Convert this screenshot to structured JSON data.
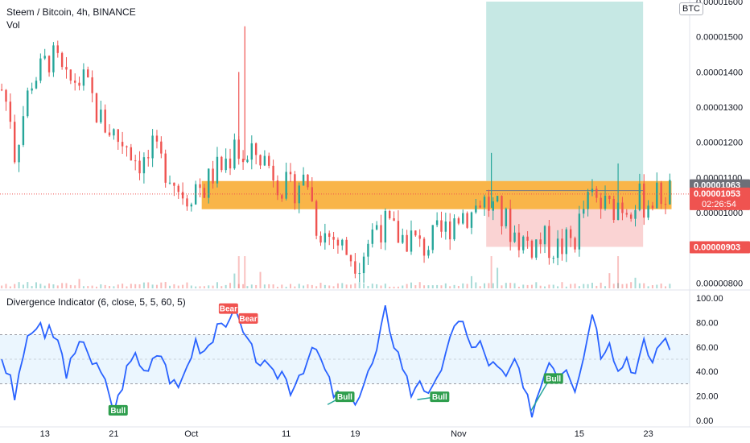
{
  "header": {
    "symbol_line": "Steem / Bitcoin, 4h, BINANCE",
    "volume_label": "Vol",
    "indicator_line": "Divergence Indicator (6, close, 5, 5, 60, 5)",
    "currency_badge": "BTC"
  },
  "colors": {
    "up": "#26a69a",
    "down": "#ef5350",
    "rsi": "#2962ff",
    "zone": "#f7a21b",
    "target": "#80cbc4",
    "stop": "#f8bbbb"
  },
  "chart_data": [
    {
      "type": "candlestick",
      "title": "Steem / Bitcoin, 4h, BINANCE",
      "y_ticks": [
        "0.00001600",
        "0.00001500",
        "0.00001400",
        "0.00001300",
        "0.00001200",
        "0.00001100",
        "0.00001000",
        "0.00000900",
        "0.00000800"
      ],
      "ylim": [
        7.85e-06,
        1.6e-05
      ],
      "x_ticks": [
        {
          "label": "13",
          "day": 13
        },
        {
          "label": "21",
          "day": 21
        },
        {
          "label": "Oct",
          "day": 30
        },
        {
          "label": "11",
          "day": 41
        },
        {
          "label": "19",
          "day": 49
        },
        {
          "label": "Nov",
          "day": 61
        },
        {
          "label": "15",
          "day": 75
        },
        {
          "label": "23",
          "day": 83
        }
      ],
      "xlim_day": [
        7.8,
        87.8
      ],
      "price_labels": [
        {
          "value": "0.00001063",
          "price": 1.063e-05,
          "bg": "#6d6f78"
        },
        {
          "value": "0.00001053",
          "price": 1.053e-05,
          "bg": "#ef5350",
          "sub": "02:26:54"
        },
        {
          "value": "0.00000903",
          "price": 9.03e-06,
          "bg": "#ef5350"
        }
      ],
      "key_points": [
        [
          8,
          1.35e-05
        ],
        [
          9,
          1.28e-05
        ],
        [
          9.5,
          1.17e-05
        ],
        [
          10.5,
          1.28e-05
        ],
        [
          11.5,
          1.38e-05
        ],
        [
          12.5,
          1.4e-05
        ],
        [
          13.5,
          1.44e-05
        ],
        [
          14.5,
          1.42e-05
        ],
        [
          15.5,
          1.36e-05
        ],
        [
          16.5,
          1.38e-05
        ],
        [
          17.5,
          1.37e-05
        ],
        [
          18.5,
          1.32e-05
        ],
        [
          19.5,
          1.26e-05
        ],
        [
          20.5,
          1.24e-05
        ],
        [
          21.5,
          1.21e-05
        ],
        [
          22.5,
          1.2e-05
        ],
        [
          23.5,
          1.16e-05
        ],
        [
          24.5,
          1.14e-05
        ],
        [
          25.5,
          1.17e-05
        ],
        [
          26.5,
          1.14e-05
        ],
        [
          27.5,
          1.12e-05
        ],
        [
          28.5,
          1.07e-05
        ],
        [
          29.5,
          1.05e-05
        ],
        [
          30.5,
          1.08e-05
        ],
        [
          31.5,
          1.07e-05
        ],
        [
          32.5,
          1.11e-05
        ],
        [
          33.5,
          1.13e-05
        ],
        [
          34.5,
          1.16e-05
        ],
        [
          35,
          1.23e-05
        ],
        [
          35.5,
          1.17e-05
        ],
        [
          36.5,
          1.14e-05
        ],
        [
          37.5,
          1.17e-05
        ],
        [
          38.5,
          1.15e-05
        ],
        [
          39.5,
          1.12e-05
        ],
        [
          40.5,
          1.08e-05
        ],
        [
          41.5,
          1.06e-05
        ],
        [
          42.5,
          1.09e-05
        ],
        [
          43.5,
          1.09e-05
        ],
        [
          44.5,
          9.7e-06
        ],
        [
          45.5,
          9.4e-06
        ],
        [
          46.5,
          9.3e-06
        ],
        [
          47.5,
          9e-06
        ],
        [
          48.5,
          8.8e-06
        ],
        [
          49.5,
          8.7e-06
        ],
        [
          50.5,
          9.2e-06
        ],
        [
          51.5,
          9.7e-06
        ],
        [
          52.5,
          9.6e-06
        ],
        [
          53.5,
          9.4e-06
        ],
        [
          54.5,
          9.3e-06
        ],
        [
          55.5,
          9.3e-06
        ],
        [
          56.5,
          9e-06
        ],
        [
          57.5,
          9.1e-06
        ],
        [
          58.5,
          9.3e-06
        ],
        [
          59.5,
          9.5e-06
        ],
        [
          60.5,
          9.9e-06
        ],
        [
          61.5,
          1e-05
        ],
        [
          62.5,
          1e-05
        ],
        [
          63.5,
          1.04e-05
        ],
        [
          64.5,
          1.02e-05
        ],
        [
          65.5,
          1e-05
        ],
        [
          66.5,
          9.7e-06
        ],
        [
          67.5,
          9.4e-06
        ],
        [
          68.5,
          9.2e-06
        ],
        [
          69.5,
          9.1e-06
        ],
        [
          70.5,
          9.2e-06
        ],
        [
          71.5,
          9.1e-06
        ],
        [
          72.5,
          9e-06
        ],
        [
          73.5,
          9.1e-06
        ],
        [
          74.5,
          9.3e-06
        ],
        [
          75.5,
          1.01e-05
        ],
        [
          76.5,
          1.04e-05
        ],
        [
          77.5,
          1.02e-05
        ],
        [
          78.5,
          1.01e-05
        ],
        [
          79.5,
          1.03e-05
        ],
        [
          80.5,
          1.02e-05
        ],
        [
          81.5,
          1.04e-05
        ],
        [
          82.5,
          1.03e-05
        ],
        [
          83.5,
          1.04e-05
        ],
        [
          84.5,
          1.05e-05
        ],
        [
          85.5,
          1.06e-05
        ]
      ],
      "spikes": [
        {
          "day": 36.2,
          "high": 1.53e-05
        },
        {
          "day": 35.5,
          "high": 1.4e-05
        },
        {
          "day": 64.8,
          "high": 1.17e-05
        },
        {
          "day": 79.5,
          "high": 1.14e-05
        }
      ],
      "resistance_zone": {
        "day_start": 31.2,
        "day_end": 85.7,
        "top": 1.09e-05,
        "bottom": 1.01e-05
      },
      "long_target": {
        "day_start": 64.2,
        "day_end": 82.4,
        "top": 1.6e-05,
        "bottom": 1.09e-05
      },
      "stop_zone": {
        "day_start": 64.2,
        "day_end": 82.4,
        "top": 1.01e-05,
        "bottom": 9.03e-06
      },
      "entry_level": 1.063e-05,
      "last_price": 1.053e-05
    },
    {
      "type": "line",
      "title": "Divergence Indicator (6, close, 5, 5, 60, 5)",
      "y_ticks": [
        "100.00",
        "80.00",
        "60.00",
        "40.00",
        "20.00",
        "0.00"
      ],
      "ylim": [
        0,
        100
      ],
      "band": [
        30,
        70
      ],
      "midline": 50,
      "key_points": [
        [
          8,
          52
        ],
        [
          9,
          32
        ],
        [
          9.5,
          18
        ],
        [
          10.5,
          55
        ],
        [
          11.5,
          72
        ],
        [
          12.5,
          80
        ],
        [
          13,
          62
        ],
        [
          13.5,
          75
        ],
        [
          14.5,
          64
        ],
        [
          15.5,
          40
        ],
        [
          16.5,
          52
        ],
        [
          17.5,
          68
        ],
        [
          18.5,
          48
        ],
        [
          19.5,
          38
        ],
        [
          20.5,
          22
        ],
        [
          21,
          8
        ],
        [
          21.5,
          18
        ],
        [
          22.5,
          42
        ],
        [
          23.5,
          55
        ],
        [
          24.5,
          40
        ],
        [
          25.5,
          52
        ],
        [
          26.5,
          58
        ],
        [
          27.5,
          34
        ],
        [
          28.5,
          22
        ],
        [
          29.5,
          48
        ],
        [
          30.5,
          62
        ],
        [
          31.5,
          55
        ],
        [
          32.5,
          66
        ],
        [
          33.5,
          85
        ],
        [
          34.5,
          78
        ],
        [
          35,
          90
        ],
        [
          35.5,
          80
        ],
        [
          36.5,
          62
        ],
        [
          37.5,
          52
        ],
        [
          38.5,
          44
        ],
        [
          39.5,
          36
        ],
        [
          40.5,
          40
        ],
        [
          41.5,
          26
        ],
        [
          42.5,
          38
        ],
        [
          43.5,
          50
        ],
        [
          44.5,
          58
        ],
        [
          45.5,
          40
        ],
        [
          46.5,
          22
        ],
        [
          47.5,
          18
        ],
        [
          48.5,
          14
        ],
        [
          49.5,
          22
        ],
        [
          50.5,
          38
        ],
        [
          51.5,
          55
        ],
        [
          52.5,
          90
        ],
        [
          53.5,
          64
        ],
        [
          54.5,
          45
        ],
        [
          55.5,
          22
        ],
        [
          56.5,
          36
        ],
        [
          57.5,
          18
        ],
        [
          58.5,
          30
        ],
        [
          59.5,
          58
        ],
        [
          60.5,
          72
        ],
        [
          61.5,
          85
        ],
        [
          62.5,
          58
        ],
        [
          63.5,
          62
        ],
        [
          64.5,
          48
        ],
        [
          65.5,
          42
        ],
        [
          66.5,
          34
        ],
        [
          67.5,
          50
        ],
        [
          68.5,
          24
        ],
        [
          69.5,
          8
        ],
        [
          70.5,
          28
        ],
        [
          71.5,
          52
        ],
        [
          72.5,
          38
        ],
        [
          73.5,
          46
        ],
        [
          74.5,
          28
        ],
        [
          75.5,
          52
        ],
        [
          76.5,
          92
        ],
        [
          77.5,
          55
        ],
        [
          78.5,
          68
        ],
        [
          79.5,
          40
        ],
        [
          80.5,
          52
        ],
        [
          81.5,
          38
        ],
        [
          82.5,
          62
        ],
        [
          83.5,
          48
        ],
        [
          84.5,
          68
        ],
        [
          85.5,
          58
        ]
      ],
      "labels": [
        {
          "text": "Bear",
          "day": 34.3,
          "y": 91,
          "kind": "bear"
        },
        {
          "text": "Bear",
          "day": 36.6,
          "y": 83,
          "kind": "bear"
        },
        {
          "text": "Bull",
          "day": 21.5,
          "y": 8,
          "kind": "bull"
        },
        {
          "text": "Bull",
          "day": 47.8,
          "y": 19,
          "kind": "bull"
        },
        {
          "text": "Bull",
          "day": 58.8,
          "y": 19,
          "kind": "bull"
        },
        {
          "text": "Bull",
          "day": 72.0,
          "y": 34,
          "kind": "bull"
        }
      ],
      "bull_lines": [
        [
          [
            45.8,
            13
          ],
          [
            47.4,
            19
          ]
        ],
        [
          [
            56.2,
            17
          ],
          [
            58.2,
            19
          ]
        ],
        [
          [
            69.4,
            8
          ],
          [
            71.4,
            32
          ]
        ]
      ]
    }
  ]
}
